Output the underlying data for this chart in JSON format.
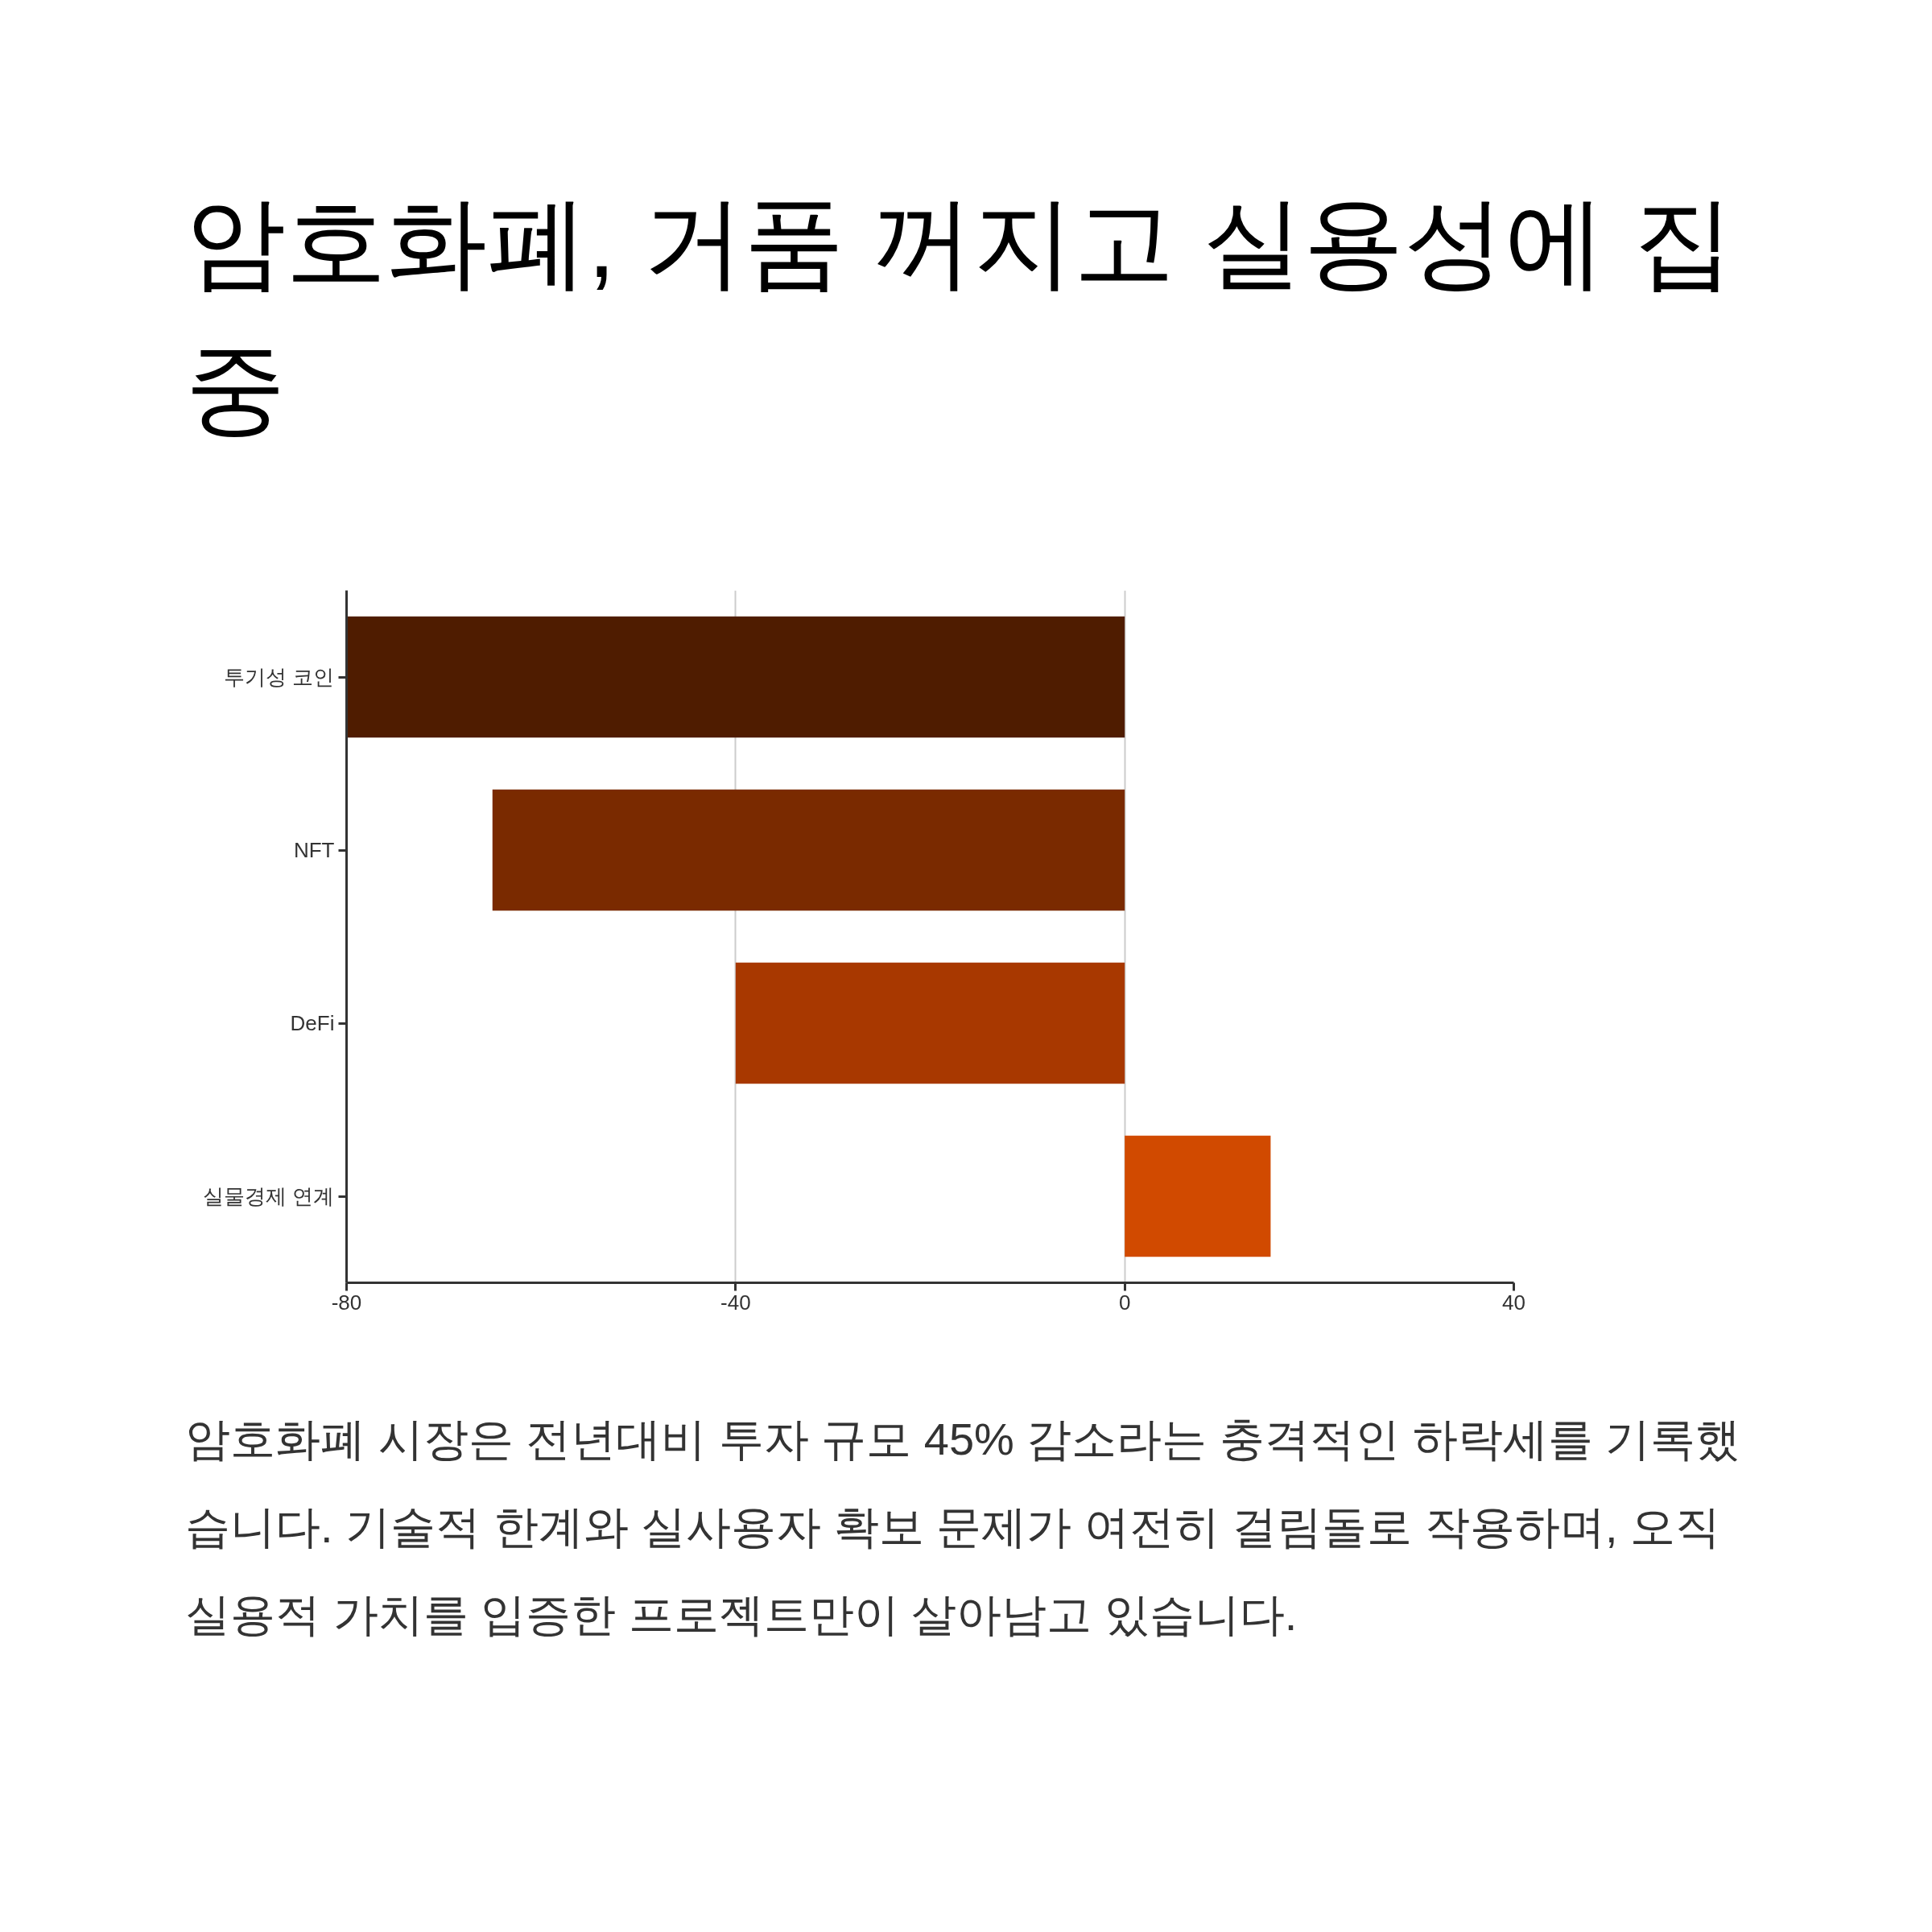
{
  "chart_data": {
    "type": "bar",
    "orientation": "horizontal",
    "title": "암호화폐, 거품 꺼지고 실용성에 집중",
    "categories": [
      "투기성 코인",
      "NFT",
      "DeFi",
      "실물경제 연계"
    ],
    "values": [
      -80,
      -65,
      -40,
      15
    ],
    "colors": [
      "#4f1c00",
      "#7a2a00",
      "#a83800",
      "#d14a00"
    ],
    "xlim": [
      -80,
      40
    ],
    "xticks": [
      -80,
      -40,
      0,
      40
    ],
    "grid": "x",
    "annotations": [
      "암호화폐 시장은 전년대비 투자 규모 45% 감소라는 충격적인 하락세를 기록했습니다. 기술적 한계와 실사용자 확보 문제가 여전히 걸림돌로 작용하며, 오직 실용적 가치를 입증한 프로젝트만이 살아남고 있습니다."
    ]
  }
}
